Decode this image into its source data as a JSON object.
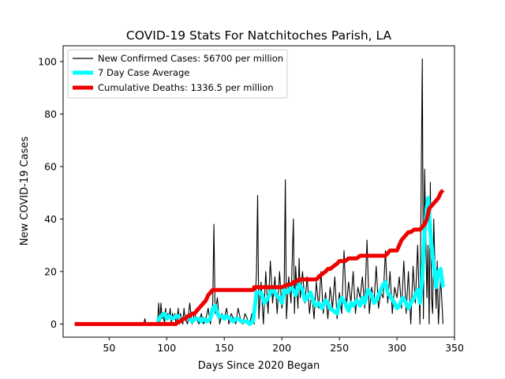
{
  "chart_data": {
    "type": "line",
    "title": "COVID-19 Stats For Natchitoches Parish, LA",
    "xlabel": "Days Since 2020 Began",
    "ylabel": "New COVID-19 Cases",
    "xlim": [
      10,
      350
    ],
    "ylim": [
      -5,
      106
    ],
    "xticks": [
      50,
      100,
      150,
      200,
      250,
      300,
      350
    ],
    "yticks": [
      0,
      20,
      40,
      60,
      80,
      100
    ],
    "grid": false,
    "legend_position": "top-left",
    "colors": {
      "new_cases": "#000000",
      "avg": "#00ffff",
      "deaths": "#ee0000"
    },
    "series": [
      {
        "name": "New Confirmed Cases: 56700 per million",
        "x": [
          20,
          80,
          81,
          82,
          92,
          93,
          94,
          95,
          96,
          97,
          98,
          99,
          100,
          101,
          102,
          103,
          104,
          105,
          106,
          107,
          108,
          109,
          110,
          111,
          112,
          113,
          114,
          115,
          116,
          118,
          120,
          122,
          124,
          126,
          128,
          130,
          132,
          134,
          136,
          138,
          140,
          141,
          142,
          144,
          146,
          148,
          150,
          152,
          154,
          156,
          158,
          160,
          162,
          164,
          166,
          168,
          170,
          172,
          174,
          176,
          178,
          179,
          180,
          182,
          184,
          186,
          188,
          190,
          192,
          194,
          196,
          198,
          200,
          202,
          203,
          204,
          206,
          208,
          210,
          211,
          212,
          214,
          215,
          216,
          218,
          220,
          222,
          224,
          226,
          228,
          230,
          232,
          234,
          236,
          238,
          240,
          242,
          244,
          246,
          248,
          250,
          252,
          254,
          256,
          258,
          260,
          262,
          264,
          266,
          268,
          270,
          272,
          274,
          276,
          278,
          280,
          282,
          284,
          286,
          288,
          290,
          292,
          294,
          296,
          298,
          300,
          302,
          304,
          306,
          308,
          310,
          312,
          314,
          316,
          318,
          320,
          322,
          323,
          324,
          326,
          327,
          328,
          329,
          330,
          331,
          332,
          334,
          335,
          336,
          338,
          340
        ],
        "y": [
          0,
          0,
          2,
          0,
          0,
          8,
          0,
          8,
          2,
          4,
          0,
          6,
          2,
          4,
          2,
          6,
          0,
          4,
          2,
          4,
          0,
          2,
          6,
          0,
          4,
          2,
          0,
          6,
          2,
          0,
          8,
          0,
          4,
          2,
          0,
          4,
          0,
          2,
          6,
          0,
          8,
          38,
          4,
          10,
          0,
          4,
          2,
          6,
          0,
          4,
          2,
          0,
          6,
          2,
          0,
          4,
          2,
          0,
          4,
          0,
          20,
          49,
          2,
          16,
          0,
          20,
          4,
          24,
          8,
          18,
          4,
          20,
          6,
          12,
          55,
          2,
          18,
          8,
          40,
          4,
          22,
          6,
          25,
          10,
          20,
          8,
          18,
          4,
          12,
          2,
          16,
          6,
          20,
          4,
          12,
          2,
          14,
          6,
          18,
          2,
          12,
          4,
          28,
          6,
          16,
          8,
          20,
          4,
          14,
          10,
          18,
          6,
          32,
          4,
          14,
          8,
          22,
          6,
          12,
          10,
          28,
          8,
          20,
          4,
          14,
          10,
          18,
          6,
          24,
          4,
          20,
          0,
          22,
          8,
          30,
          0,
          101,
          2,
          59,
          10,
          30,
          0,
          54,
          10,
          4,
          40,
          6,
          24,
          0,
          18,
          0
        ]
      },
      {
        "name": "7 Day Case Average",
        "x": [
          92,
          95,
          98,
          100,
          102,
          105,
          108,
          110,
          112,
          115,
          118,
          120,
          122,
          125,
          128,
          130,
          132,
          135,
          138,
          140,
          142,
          145,
          148,
          150,
          152,
          155,
          158,
          160,
          162,
          165,
          168,
          170,
          172,
          175,
          178,
          180,
          182,
          185,
          188,
          190,
          192,
          195,
          198,
          200,
          202,
          205,
          208,
          210,
          212,
          215,
          218,
          220,
          222,
          225,
          228,
          230,
          232,
          235,
          238,
          240,
          242,
          245,
          248,
          250,
          252,
          255,
          258,
          260,
          262,
          265,
          268,
          270,
          272,
          275,
          278,
          280,
          282,
          285,
          288,
          290,
          292,
          295,
          298,
          300,
          302,
          305,
          308,
          310,
          312,
          315,
          318,
          320,
          322,
          324,
          326,
          327,
          328,
          330,
          332,
          334,
          336,
          338,
          340
        ],
        "y": [
          1,
          3,
          4,
          2,
          3,
          2,
          3,
          3,
          2,
          2,
          3,
          2,
          1,
          2,
          2,
          1,
          2,
          1,
          2,
          6,
          7,
          3,
          3,
          2,
          3,
          2,
          1,
          2,
          2,
          1,
          1,
          1,
          0,
          1,
          12,
          12,
          12,
          8,
          10,
          12,
          14,
          11,
          10,
          8,
          13,
          12,
          14,
          13,
          11,
          15,
          13,
          9,
          10,
          12,
          8,
          7,
          8,
          6,
          9,
          8,
          6,
          5,
          4,
          8,
          10,
          8,
          5,
          8,
          7,
          9,
          7,
          10,
          8,
          13,
          11,
          8,
          9,
          12,
          15,
          16,
          12,
          10,
          8,
          6,
          7,
          10,
          8,
          6,
          8,
          10,
          13,
          8,
          18,
          35,
          44,
          48,
          42,
          30,
          22,
          14,
          20,
          21,
          14
        ]
      },
      {
        "name": "Cumulative Deaths: 1336.5 per million",
        "x": [
          20,
          108,
          110,
          112,
          114,
          116,
          118,
          120,
          122,
          124,
          126,
          128,
          130,
          132,
          134,
          136,
          138,
          140,
          170,
          175,
          176,
          178,
          200,
          205,
          208,
          210,
          212,
          215,
          218,
          220,
          230,
          232,
          235,
          238,
          240,
          242,
          245,
          248,
          250,
          252,
          255,
          258,
          260,
          262,
          265,
          268,
          270,
          290,
          292,
          294,
          296,
          298,
          300,
          302,
          304,
          306,
          308,
          310,
          312,
          315,
          318,
          320,
          322,
          324,
          326,
          328,
          330,
          332,
          334,
          336,
          338,
          340
        ],
        "y": [
          0,
          0,
          1,
          1,
          2,
          2,
          3,
          3,
          4,
          4,
          5,
          6,
          7,
          8,
          9,
          11,
          12,
          13,
          13,
          13,
          14,
          14,
          14,
          15,
          15,
          16,
          16,
          17,
          17,
          17,
          17,
          18,
          19,
          20,
          21,
          21,
          22,
          23,
          24,
          24,
          24,
          25,
          25,
          25,
          25,
          26,
          26,
          26,
          27,
          28,
          28,
          28,
          28,
          30,
          32,
          33,
          34,
          35,
          35,
          36,
          36,
          36,
          37,
          38,
          40,
          44,
          45,
          46,
          47,
          48,
          50,
          51
        ]
      }
    ]
  }
}
